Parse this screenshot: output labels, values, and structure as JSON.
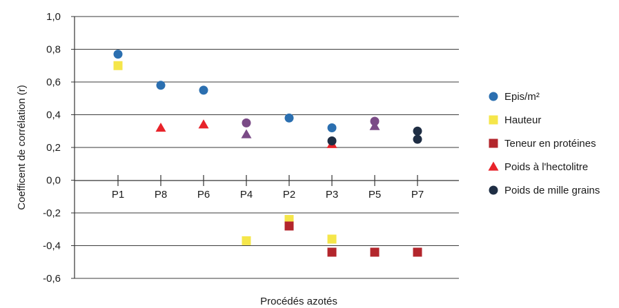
{
  "chart_data": {
    "type": "scatter",
    "xlabel": "Procédés azotés",
    "ylabel": "Coefficent de corrélation (r)",
    "categories": [
      "P1",
      "P8",
      "P6",
      "P4",
      "P2",
      "P3",
      "P5",
      "P7"
    ],
    "ylim": [
      -0.6,
      1.0
    ],
    "yticks": [
      "-0,6",
      "-0,4",
      "-0,2",
      "0,0",
      "0,2",
      "0,4",
      "0,6",
      "0,8",
      "1,0"
    ],
    "grid": true,
    "legend_position": "right",
    "series": [
      {
        "name": "Epis/m²",
        "marker": "circle",
        "color": "#2b6fb0",
        "points": [
          {
            "x": "P1",
            "y": 0.77
          },
          {
            "x": "P8",
            "y": 0.58
          },
          {
            "x": "P6",
            "y": 0.55
          },
          {
            "x": "P2",
            "y": 0.38
          },
          {
            "x": "P3",
            "y": 0.32
          }
        ]
      },
      {
        "name": "Hauteur",
        "marker": "square",
        "color": "#f5e64a",
        "points": [
          {
            "x": "P1",
            "y": 0.7
          },
          {
            "x": "P4",
            "y": -0.37
          },
          {
            "x": "P2",
            "y": -0.24
          },
          {
            "x": "P3",
            "y": -0.36
          }
        ]
      },
      {
        "name": "Teneur en protéines",
        "marker": "square",
        "color": "#b3262c",
        "points": [
          {
            "x": "P2",
            "y": -0.28
          },
          {
            "x": "P3",
            "y": -0.44
          },
          {
            "x": "P5",
            "y": -0.44
          },
          {
            "x": "P7",
            "y": -0.44
          }
        ]
      },
      {
        "name": "Poids à l'hectolitre",
        "marker": "triangle",
        "color": "#e8232a",
        "points": [
          {
            "x": "P8",
            "y": 0.32
          },
          {
            "x": "P6",
            "y": 0.34
          },
          {
            "x": "P3",
            "y": 0.22
          }
        ]
      },
      {
        "name": "Poids de mille grains",
        "marker": "circle",
        "color": "#1f2e44",
        "points": [
          {
            "x": "P3",
            "y": 0.24
          },
          {
            "x": "P7",
            "y": 0.3
          },
          {
            "x": "P7",
            "y": 0.25
          }
        ]
      },
      {
        "name": "",
        "marker": "circle",
        "color": "#7a4a86",
        "in_legend": false,
        "points": [
          {
            "x": "P4",
            "y": 0.35
          },
          {
            "x": "P5",
            "y": 0.36
          }
        ]
      },
      {
        "name": "",
        "marker": "triangle",
        "color": "#7a4a86",
        "in_legend": false,
        "points": [
          {
            "x": "P4",
            "y": 0.28
          },
          {
            "x": "P5",
            "y": 0.33
          }
        ]
      }
    ]
  }
}
